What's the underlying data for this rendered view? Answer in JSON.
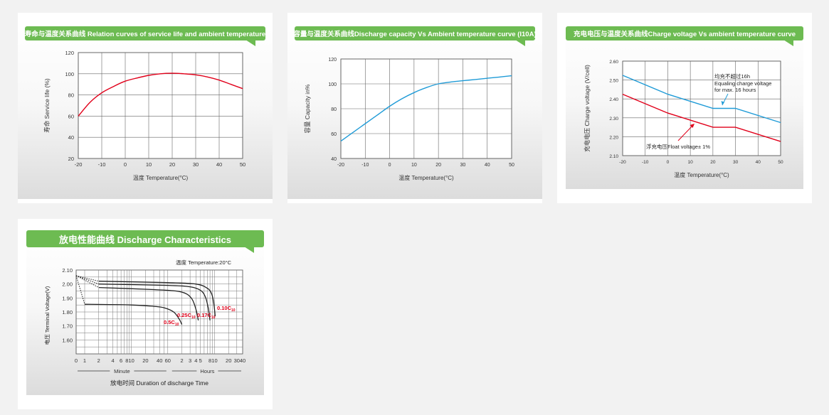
{
  "colors": {
    "banner": "#6dbb52",
    "red": "#e1001a",
    "blue": "#1f9bd7",
    "black": "#000000"
  },
  "chart_data": [
    {
      "type": "line",
      "title": "寿命与温度关系曲线 Relation curves of service life and ambient temperature",
      "xlabel": "温度 Temperature(°C)",
      "ylabel": "寿命 Service life (%)",
      "xlim": [
        -20,
        50
      ],
      "ylim": [
        20,
        120
      ],
      "xticks": [
        -20,
        -10,
        0,
        10,
        20,
        30,
        40,
        50
      ],
      "yticks": [
        20,
        40,
        60,
        80,
        100,
        120
      ],
      "grid": true,
      "series": [
        {
          "color": "#e1001a",
          "x": [
            -20,
            -15,
            -10,
            -5,
            0,
            5,
            10,
            15,
            20,
            25,
            30,
            35,
            40,
            45,
            50
          ],
          "y": [
            60,
            73,
            82,
            88,
            93,
            96,
            98.5,
            100,
            100.5,
            100,
            99,
            97,
            94,
            90,
            86
          ]
        }
      ]
    },
    {
      "type": "line",
      "title": "容量与温度关系曲线Discharge capacity Vs Ambient temperature curve (I10A)",
      "xlabel": "温度 Temperature(°C)",
      "ylabel": "容量 Capacity in%",
      "xlim": [
        -20,
        50
      ],
      "ylim": [
        40,
        120
      ],
      "xticks": [
        -20,
        -10,
        0,
        10,
        20,
        30,
        40,
        50
      ],
      "yticks": [
        40,
        60,
        80,
        100,
        120
      ],
      "grid": true,
      "series": [
        {
          "color": "#1f9bd7",
          "x": [
            -20,
            -15,
            -10,
            -5,
            0,
            5,
            10,
            15,
            20,
            25,
            30,
            35,
            40,
            45,
            50
          ],
          "y": [
            54,
            61,
            68,
            75,
            82,
            88,
            93,
            97,
            100,
            101.5,
            102.5,
            103.5,
            104.5,
            105.5,
            106.5
          ]
        }
      ]
    },
    {
      "type": "line",
      "title": "充电电压与温度关系曲线Charge voltage Vs ambient temperature curve",
      "xlabel": "温度 Temperature(°C)",
      "ylabel": "充电电压 Charge voltage (V/cell)",
      "xlim": [
        -20,
        50
      ],
      "ylim": [
        2.1,
        2.6
      ],
      "xticks": [
        -20,
        -10,
        0,
        10,
        20,
        30,
        40,
        50
      ],
      "yticks": [
        2.1,
        2.2,
        2.3,
        2.4,
        2.5,
        2.6
      ],
      "ytick_labels": [
        "2.10",
        "2.20",
        "2.30",
        "2.40",
        "2.50",
        "2.60"
      ],
      "grid": true,
      "annotations": [
        {
          "lines": [
            "均充不超过16h",
            "Equaling charge voltage",
            "for max. 16 hours"
          ]
        },
        {
          "lines": [
            "浮充电压Float voltage± 1%"
          ]
        }
      ],
      "series": [
        {
          "color": "#1f9bd7",
          "x": [
            -20,
            0,
            20,
            30,
            50
          ],
          "y": [
            2.525,
            2.425,
            2.35,
            2.35,
            2.275
          ]
        },
        {
          "color": "#e1001a",
          "x": [
            -20,
            0,
            20,
            30,
            50
          ],
          "y": [
            2.425,
            2.325,
            2.25,
            2.25,
            2.175
          ]
        }
      ]
    },
    {
      "type": "line",
      "title": "放电性能曲线 Discharge Characteristics",
      "xlabel": "放电时间 Duration of discharge Time",
      "ylabel": "电压 Terminal Voltage(V)",
      "xscale": "log",
      "ylim": [
        1.5,
        2.1
      ],
      "yticks": [
        1.6,
        1.7,
        1.8,
        1.9,
        2.0,
        2.1
      ],
      "ytick_labels": [
        "1.60",
        "1.70",
        "1.80",
        "1.90",
        "2.00",
        "2.10"
      ],
      "xtick_labels": [
        "0",
        "1",
        "2",
        "4",
        "6",
        "8",
        "10",
        "20",
        "40",
        "60",
        "2",
        "3",
        "4",
        "5",
        "8",
        "10",
        "20",
        "30",
        "40"
      ],
      "segment_labels": [
        "Minute",
        "Hours"
      ],
      "temperature_label": "温度 Temperature:20°C",
      "grid": true,
      "series": [
        {
          "name": "0.5C10",
          "label": "0.5C",
          "sub": "10",
          "x_minutes": [
            0,
            1,
            10,
            30,
            50,
            80,
            105,
            120
          ],
          "y": [
            2.06,
            1.855,
            1.85,
            1.84,
            1.83,
            1.8,
            1.75,
            1.71
          ]
        },
        {
          "name": "0.25C10",
          "label": "0.25C",
          "sub": "10",
          "x_minutes": [
            0,
            2,
            30,
            90,
            150,
            200,
            240,
            270
          ],
          "y": [
            2.06,
            1.975,
            1.96,
            1.95,
            1.93,
            1.89,
            1.82,
            1.74
          ]
        },
        {
          "name": "0.17C10",
          "label": "0.17C",
          "sub": "10",
          "x_minutes": [
            0,
            2,
            60,
            180,
            300,
            380,
            440,
            480
          ],
          "y": [
            2.06,
            2.0,
            1.99,
            1.98,
            1.955,
            1.91,
            1.83,
            1.74
          ]
        },
        {
          "name": "0.10C10",
          "label": "0.10C",
          "sub": "10",
          "x_minutes": [
            0,
            2,
            60,
            240,
            420,
            520,
            580,
            620
          ],
          "y": [
            2.06,
            2.02,
            2.01,
            2.0,
            1.97,
            1.93,
            1.86,
            1.77
          ]
        }
      ]
    }
  ]
}
